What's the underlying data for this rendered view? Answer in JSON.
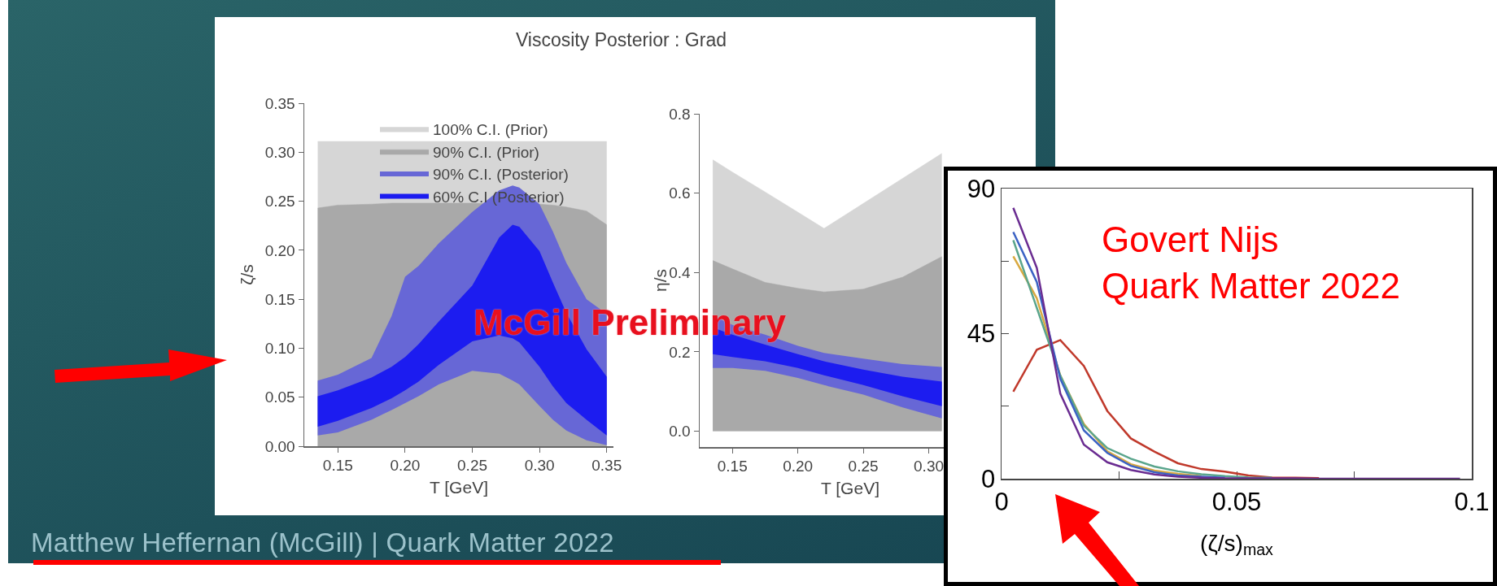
{
  "chart_data": [
    {
      "type": "area",
      "title": "Viscosity Posterior : Grad",
      "xlabel": "T [GeV]",
      "ylabel": "ζ/s",
      "xlim": [
        0.125,
        0.355
      ],
      "ylim": [
        0,
        0.35
      ],
      "xticks": [
        0.15,
        {
          "value": 0.2,
          "label": "0.20"
        },
        0.25,
        {
          "value": 0.3,
          "label": "0.30"
        },
        0.35
      ],
      "yticks": [
        {
          "value": 0,
          "label": "0.00"
        },
        0.05,
        {
          "value": 0.1,
          "label": "0.10"
        },
        0.15,
        {
          "value": 0.2,
          "label": "0.20"
        },
        0.25,
        {
          "value": 0.3,
          "label": "0.30"
        },
        0.35
      ],
      "grid": false,
      "legend": "top",
      "annotations": [
        "McGill Preliminary",
        "Matthew Heffernan (McGill) | Quark Matter 2022"
      ],
      "x": [
        0.135,
        0.15,
        0.175,
        0.19,
        0.2,
        0.21,
        0.225,
        0.25,
        0.27,
        0.28,
        0.285,
        0.3,
        0.31,
        0.32,
        0.335,
        0.35
      ],
      "series": [
        {
          "name": "100% C.I. (Prior)",
          "color": "#d6d6d6",
          "values": [
            0.311,
            0.311,
            0.311,
            0.311,
            0.311,
            0.311,
            0.311,
            0.311,
            0.311,
            0.311,
            0.311,
            0.311,
            0.311,
            0.311,
            0.311,
            0.311
          ]
        },
        {
          "name": "90% C.I. (Prior)",
          "color": "#a9a9a9",
          "values": [
            0.243,
            0.246,
            0.247,
            0.248,
            0.248,
            0.248,
            0.248,
            0.248,
            null,
            null,
            null,
            0.247,
            0.246,
            0.244,
            0.24,
            0.226
          ]
        },
        {
          "name": "90% C.I. (Posterior)",
          "color": "#6767d6",
          "lower": [
            0.011,
            0.014,
            0.027,
            0.037,
            0.044,
            0.051,
            0.063,
            0.077,
            0.074,
            0.067,
            0.063,
            0.041,
            0.027,
            0.016,
            0.006,
            0.001
          ],
          "values": [
            null,
            null,
            null,
            null,
            null,
            null,
            null,
            null,
            null,
            null,
            null,
            null,
            null,
            null,
            null,
            null
          ],
          "upper": [
            0.067,
            0.073,
            0.09,
            0.133,
            0.173,
            0.184,
            0.207,
            0.239,
            0.261,
            0.266,
            0.264,
            0.247,
            0.219,
            0.187,
            0.15,
            0.135
          ]
        },
        {
          "name": "60% C.I (Posterior)",
          "color": "#1c1cf0",
          "lower": [
            0.02,
            0.026,
            0.039,
            0.049,
            0.057,
            0.066,
            0.083,
            0.107,
            0.113,
            0.11,
            0.106,
            0.081,
            0.061,
            0.044,
            0.027,
            0.011
          ],
          "values": [
            null,
            null,
            null,
            null,
            null,
            null,
            null,
            null,
            null,
            null,
            null,
            null,
            null,
            null,
            null,
            null
          ],
          "upper": [
            0.051,
            0.057,
            0.07,
            0.081,
            0.091,
            0.104,
            0.127,
            0.164,
            0.213,
            0.226,
            0.224,
            0.199,
            0.167,
            0.136,
            0.099,
            0.071
          ]
        }
      ]
    },
    {
      "type": "area",
      "xlabel": "T [GeV]",
      "ylabel": "η/s",
      "xlim": [
        0.125,
        0.355
      ],
      "ylim": [
        -0.04,
        0.8
      ],
      "xticks": [
        0.15,
        {
          "value": 0.2,
          "label": "0.20"
        },
        0.25,
        {
          "value": 0.3,
          "label": "0.30"
        }
      ],
      "yticks": [
        {
          "value": 0,
          "label": "0.0"
        },
        0.2,
        0.4,
        0.6,
        0.8
      ],
      "grid": false,
      "x": [
        0.135,
        0.15,
        0.175,
        0.2,
        0.22,
        0.25,
        0.28,
        0.31
      ],
      "series": [
        {
          "color": "#d6d6d6",
          "values": [
            0.684,
            0.653,
            0.603,
            0.552,
            0.511,
            0.574,
            0.637,
            0.7
          ]
        },
        {
          "color": "#a9a9a9",
          "values": [
            0.43,
            0.409,
            0.375,
            0.36,
            0.351,
            0.358,
            0.388,
            0.44
          ]
        },
        {
          "color": "#6767d6",
          "lower": [
            0.159,
            0.159,
            0.152,
            0.134,
            0.116,
            0.092,
            0.06,
            0.032
          ],
          "values": [
            null,
            null,
            null,
            null,
            null,
            null,
            null,
            null
          ],
          "upper": [
            0.292,
            0.268,
            0.243,
            0.215,
            0.197,
            0.183,
            0.169,
            0.162
          ]
        },
        {
          "color": "#1c1cf0",
          "lower": [
            0.194,
            0.187,
            0.176,
            0.159,
            0.141,
            0.116,
            0.088,
            0.063
          ],
          "values": [
            null,
            null,
            null,
            null,
            null,
            null,
            null,
            null
          ],
          "upper": [
            0.261,
            0.243,
            0.218,
            0.194,
            0.176,
            0.155,
            0.137,
            0.125
          ]
        }
      ]
    },
    {
      "type": "line",
      "xlabel": "(ζ/s)$_{max}$",
      "xlim": [
        0,
        0.1
      ],
      "ylim": [
        0,
        90
      ],
      "xticks": [
        0,
        {
          "value": 0.025,
          "label": null
        },
        0.05,
        {
          "value": 0.075,
          "label": null
        },
        0.1
      ],
      "yticks": [
        0,
        {
          "value": 22.5,
          "label": null
        },
        45,
        {
          "value": 67.5,
          "label": null
        },
        90
      ],
      "grid": false,
      "legend": false,
      "marker": "none",
      "line_style": "solid",
      "annotations": [
        "Govert Nijs\nQuark Matter 2022"
      ],
      "x": [
        0.0025,
        0.0075,
        0.0125,
        0.0175,
        0.0225,
        0.0275,
        0.0325,
        0.0375,
        0.0425,
        0.0475,
        0.0525,
        0.0575,
        0.0625,
        0.0675,
        0.0725,
        0.0775,
        0.0825,
        0.0875,
        0.0925,
        0.0975
      ],
      "series": [
        {
          "color": "#c0392b",
          "values": [
            27,
            40,
            43,
            35,
            21,
            12.5,
            8.4,
            4.8,
            3,
            2.2,
            1,
            0.4,
            0.3,
            0.2,
            null,
            null,
            null,
            null,
            null,
            null
          ]
        },
        {
          "color": "#d9a940",
          "values": [
            69,
            56,
            32,
            17,
            8.5,
            4.5,
            2.5,
            1.5,
            0.8,
            null,
            null,
            null,
            null,
            null,
            null,
            null,
            null,
            null,
            null,
            null
          ]
        },
        {
          "color": "#5aa58c",
          "values": [
            74,
            53,
            32,
            16.5,
            9.5,
            6.2,
            3.8,
            2.3,
            1.4,
            0.8,
            0.4,
            0.3,
            null,
            null,
            null,
            null,
            null,
            null,
            null,
            null
          ]
        },
        {
          "color": "#3b62c4",
          "values": [
            76.5,
            61,
            31,
            15,
            8,
            4,
            2,
            1,
            0.6,
            0.3,
            null,
            null,
            null,
            null,
            null,
            null,
            null,
            null,
            null,
            null
          ]
        },
        {
          "color": "#6a2c91",
          "values": [
            84,
            65.4,
            26.4,
            10.6,
            5.1,
            2.7,
            1.3,
            0.6,
            0.3,
            0.1,
            0.1,
            0.1,
            0.1,
            0,
            0,
            0,
            0,
            0,
            0,
            0
          ]
        }
      ]
    }
  ]
}
